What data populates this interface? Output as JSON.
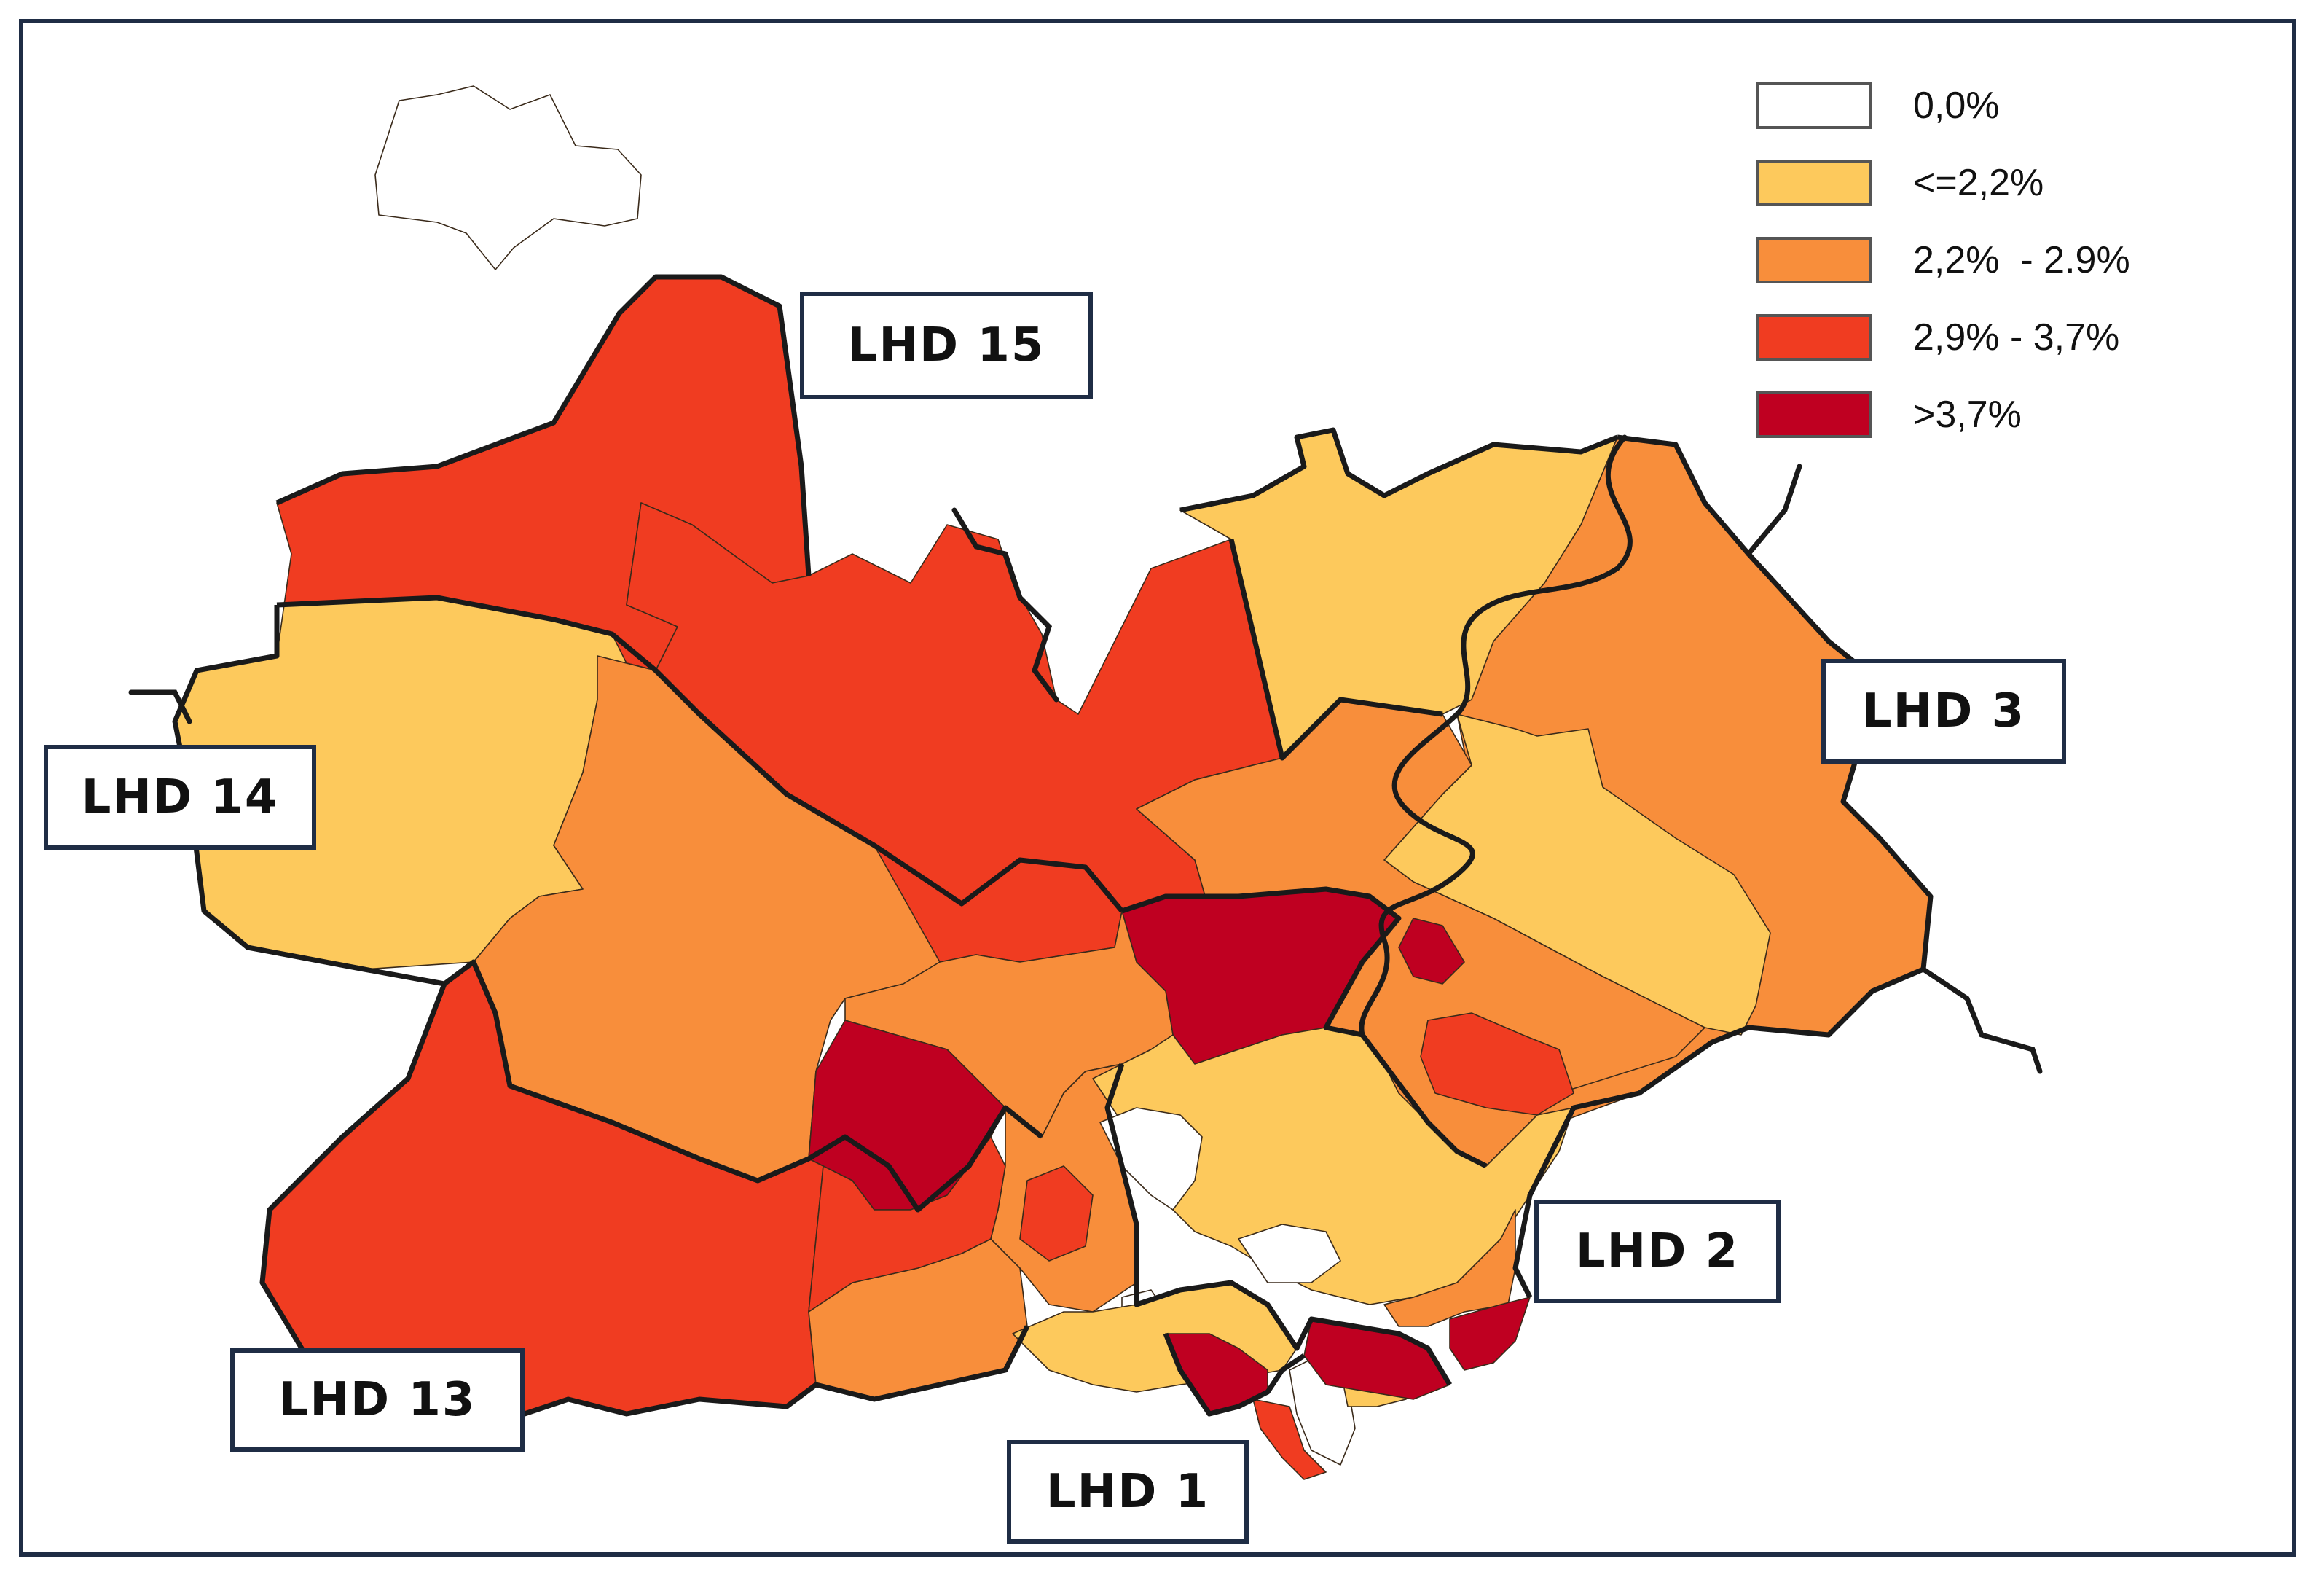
{
  "colors": {
    "c0": "#ffffff",
    "c1": "#fdc95c",
    "c2": "#f88e3b",
    "c3": "#f03c21",
    "c4": "#bf0021",
    "frame": "#1f2d45"
  },
  "legend": [
    {
      "label": "0,0%",
      "color": "#ffffff"
    },
    {
      "label": "<=2,2%",
      "color": "#fdc95c"
    },
    {
      "label": "2,2%  - 2.9%",
      "color": "#f88e3b"
    },
    {
      "label": "2,9% - 3,7%",
      "color": "#f03c21"
    },
    {
      "label": ">3,7%",
      "color": "#bf0021"
    }
  ],
  "lhd_labels": {
    "lhd15": "LHD 15",
    "lhd14": "LHD 14",
    "lhd13": "LHD 13",
    "lhd3": "LHD 3",
    "lhd2": "LHD 2",
    "lhd1": "LHD 1"
  }
}
